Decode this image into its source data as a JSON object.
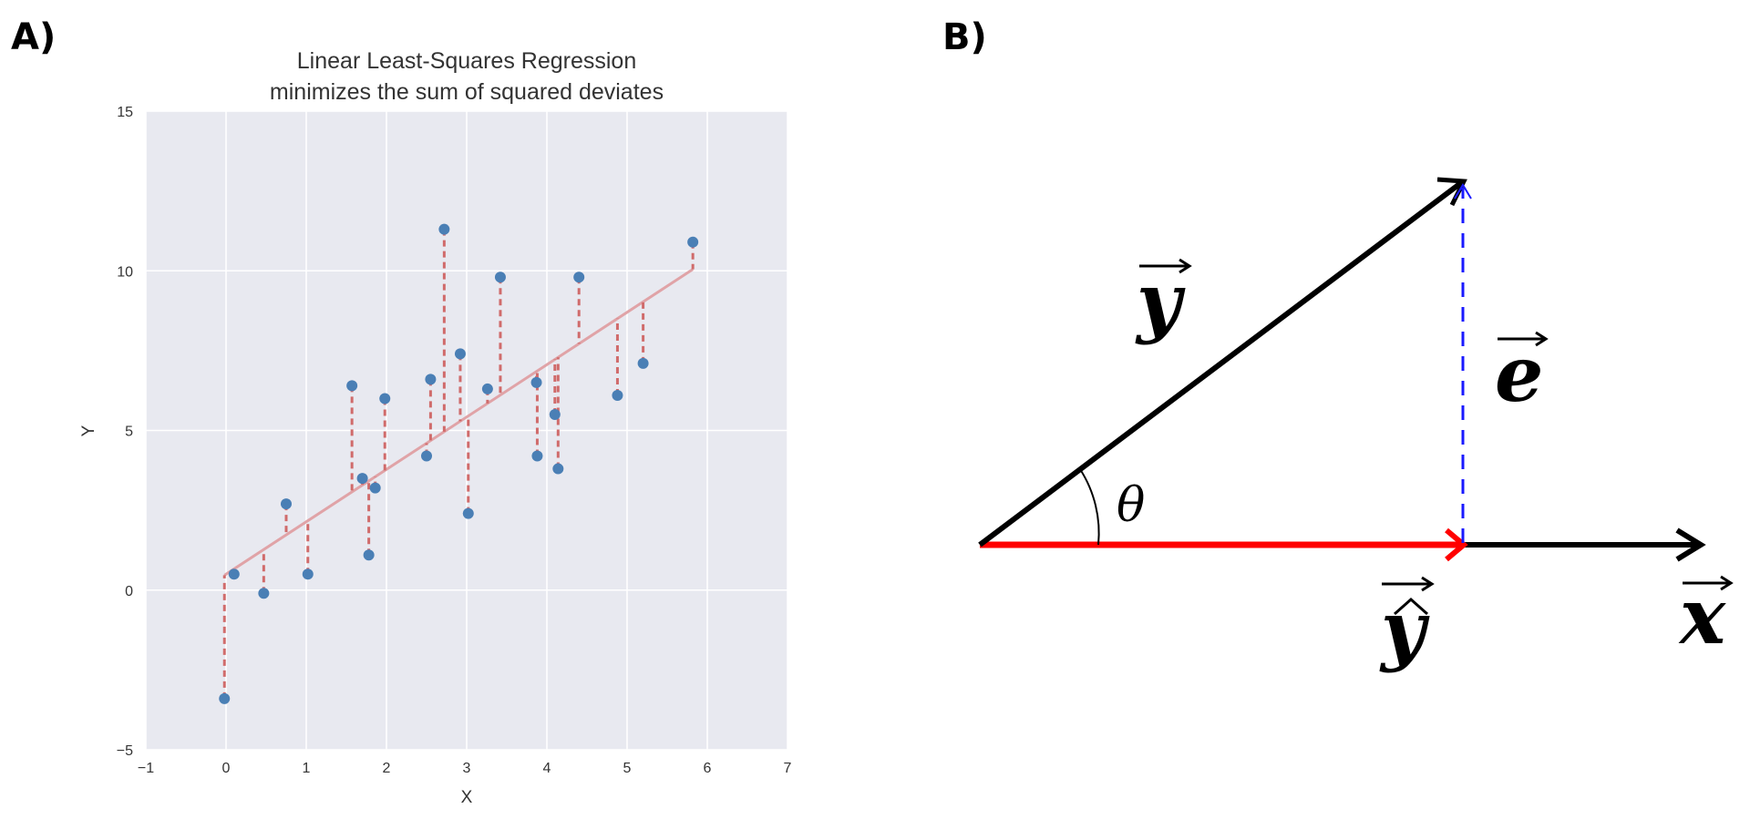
{
  "panel_a_label": "A)",
  "panel_b_label": "B)",
  "chart_data": {
    "type": "scatter",
    "title_line1": "Linear Least-Squares Regression",
    "title_line2": "minimizes the sum of squared deviates",
    "xlabel": "X",
    "ylabel": "Y",
    "xlim": [
      -1,
      7
    ],
    "ylim": [
      -5,
      15
    ],
    "xticks": [
      -1,
      0,
      1,
      2,
      3,
      4,
      5,
      6,
      7
    ],
    "yticks": [
      -5,
      0,
      5,
      10,
      15
    ],
    "xtick_labels": [
      "−1",
      "0",
      "1",
      "2",
      "3",
      "4",
      "5",
      "6",
      "7"
    ],
    "ytick_labels": [
      "−5",
      "0",
      "5",
      "10",
      "15"
    ],
    "grid": true,
    "background": "#e8e9f0",
    "point_color": "#4a7fb5",
    "fit_color": "#e0a3a7",
    "residual_color": "#d06b6b",
    "fit_line": {
      "intercept": 0.5,
      "slope": 1.64
    },
    "x": [
      -0.02,
      0.1,
      0.47,
      0.75,
      1.02,
      1.57,
      1.7,
      1.78,
      1.86,
      1.98,
      2.5,
      2.55,
      2.72,
      2.92,
      3.02,
      3.26,
      3.42,
      3.87,
      3.88,
      4.1,
      4.14,
      4.4,
      4.88,
      5.2,
      5.82
    ],
    "y": [
      -3.4,
      0.5,
      -0.1,
      2.7,
      0.5,
      6.4,
      3.5,
      1.1,
      3.2,
      6.0,
      4.2,
      6.6,
      11.3,
      7.4,
      2.4,
      6.3,
      9.8,
      6.5,
      4.2,
      5.5,
      3.8,
      9.8,
      6.1,
      7.1,
      10.9
    ]
  },
  "diagram": {
    "y_vec_label": "y",
    "e_vec_label": "e",
    "yhat_vec_label": "y",
    "x_vec_label": "x",
    "theta_label": "θ",
    "y_color": "#000000",
    "yhat_color": "#ff0000",
    "e_color": "#1a1aff",
    "x_color": "#000000"
  }
}
